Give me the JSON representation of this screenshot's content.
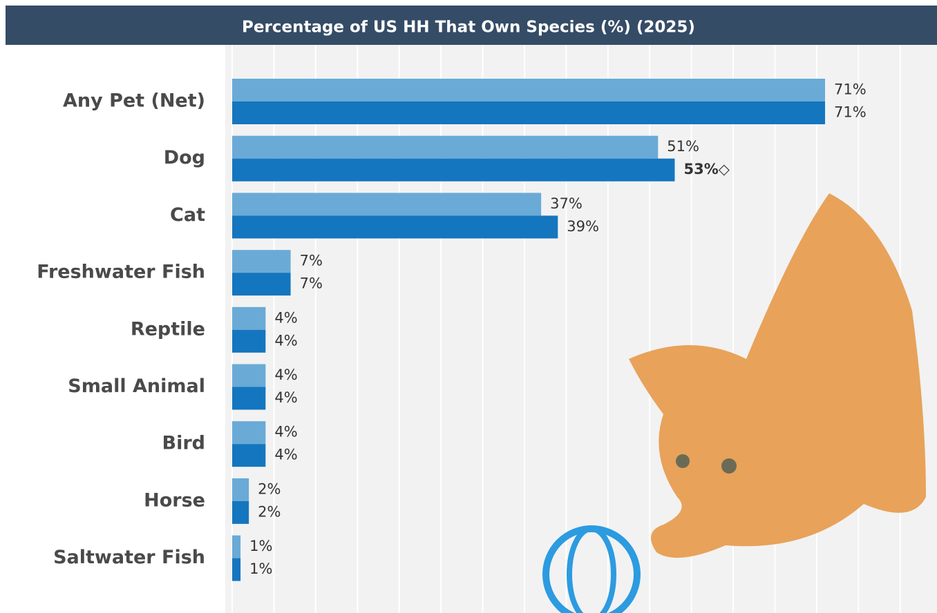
{
  "chart_data": {
    "type": "hbar",
    "title": "Percentage of US HH That Own Species (%) (2025)",
    "categories": [
      "Any Pet (Net)",
      "Dog",
      "Cat",
      "Freshwater Fish",
      "Reptile",
      "Small Animal",
      "Bird",
      "Horse",
      "Saltwater Fish"
    ],
    "series": [
      {
        "color": "#6aaad6",
        "values": [
          71,
          51,
          37,
          7,
          4,
          4,
          4,
          2,
          1
        ],
        "value_labels": [
          "71%",
          "51%",
          "37%",
          "7%",
          "4%",
          "4%",
          "4%",
          "2%",
          "1%"
        ]
      },
      {
        "color": "#1476bf",
        "values": [
          71,
          53,
          39,
          7,
          4,
          4,
          4,
          2,
          1
        ],
        "value_labels": [
          "71%",
          "53%◇",
          "39%",
          "7%",
          "4%",
          "4%",
          "4%",
          "2%",
          "1%"
        ],
        "bold_index": 1
      }
    ],
    "xlim": [
      0,
      83
    ],
    "xticks": [
      0,
      5,
      10,
      15,
      20,
      25,
      30,
      35,
      40,
      45,
      50,
      55,
      60,
      65,
      70,
      75,
      80
    ],
    "show_tick_labels": false,
    "grid": true
  }
}
